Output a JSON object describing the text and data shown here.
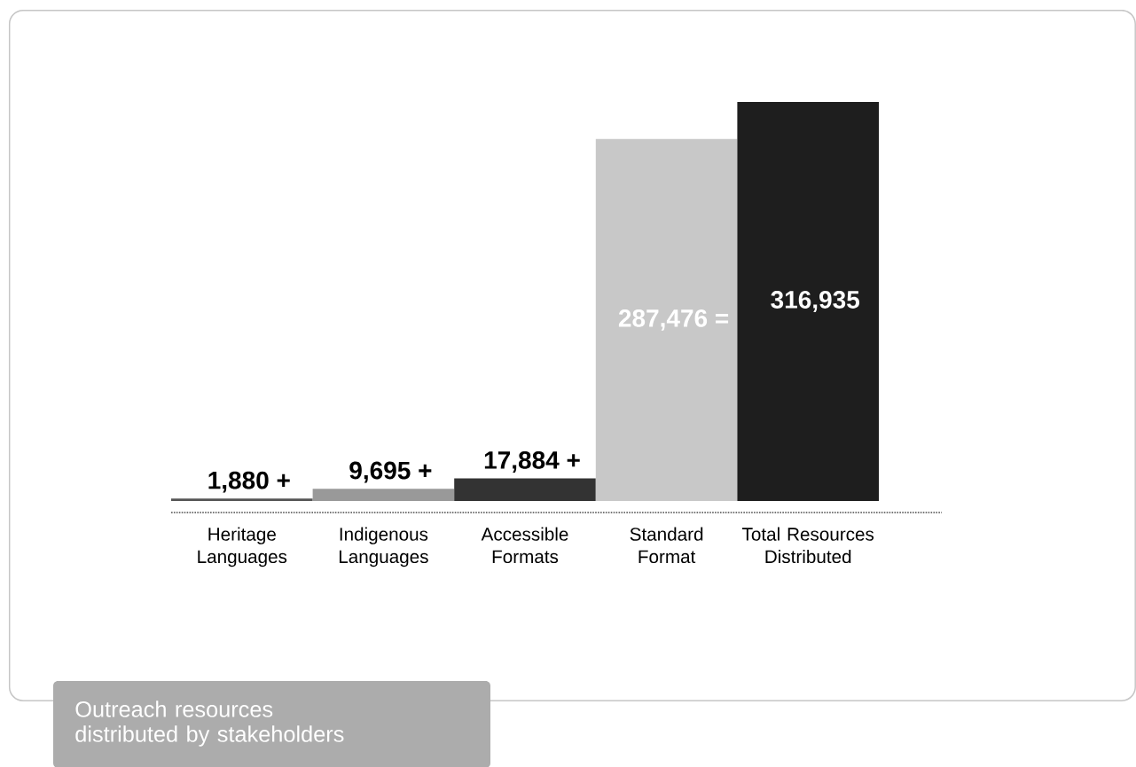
{
  "chart_data": {
    "type": "bar",
    "title": "Outreach resources distributed by stakeholders",
    "categories": [
      "Heritage Languages",
      "Indigenous Languages",
      "Accessible Formats",
      "Standard Format",
      "Total Resources Distributed"
    ],
    "values": [
      1880,
      9695,
      17884,
      287476,
      316935
    ],
    "colors": [
      "#555555",
      "#999999",
      "#333333",
      "#c8c8c8",
      "#1e1e1e"
    ],
    "value_labels": [
      "1,880 +",
      "9,695 +",
      "17,884 +",
      "287,476 =",
      "316,935"
    ]
  }
}
